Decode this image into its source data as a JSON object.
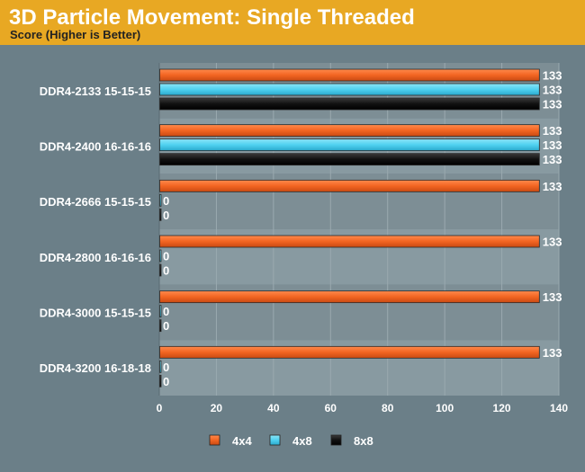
{
  "header": {
    "title": "3D Particle Movement: Single Threaded",
    "subtitle": "Score (Higher is Better)"
  },
  "colors": {
    "accent_header": "#e8a823",
    "background": "#6b7f88",
    "plot_band_a": "#7d8e95",
    "plot_band_b": "#889aa1",
    "text": "#ffffff"
  },
  "chart_data": {
    "type": "bar",
    "orientation": "horizontal",
    "title": "3D Particle Movement: Single Threaded",
    "subtitle": "Score (Higher is Better)",
    "categories": [
      "DDR4-2133 15-15-15",
      "DDR4-2400 16-16-16",
      "DDR4-2666 15-15-15",
      "DDR4-2800 16-16-16",
      "DDR4-3000 15-15-15",
      "DDR4-3200 16-18-18"
    ],
    "series": [
      {
        "name": "4x4",
        "color": "#f26522",
        "values": [
          133,
          133,
          133,
          133,
          133,
          133
        ]
      },
      {
        "name": "4x8",
        "color": "#4fd1f0",
        "values": [
          133,
          133,
          0,
          0,
          0,
          0
        ]
      },
      {
        "name": "8x8",
        "color": "#111111",
        "values": [
          133,
          133,
          0,
          0,
          0,
          0
        ]
      }
    ],
    "xlim": [
      0,
      140
    ],
    "xticks": [
      "0",
      "20",
      "40",
      "60",
      "80",
      "100",
      "120",
      "140"
    ],
    "xlabel": "",
    "ylabel": "",
    "grid": true,
    "legend_position": "bottom-center"
  }
}
